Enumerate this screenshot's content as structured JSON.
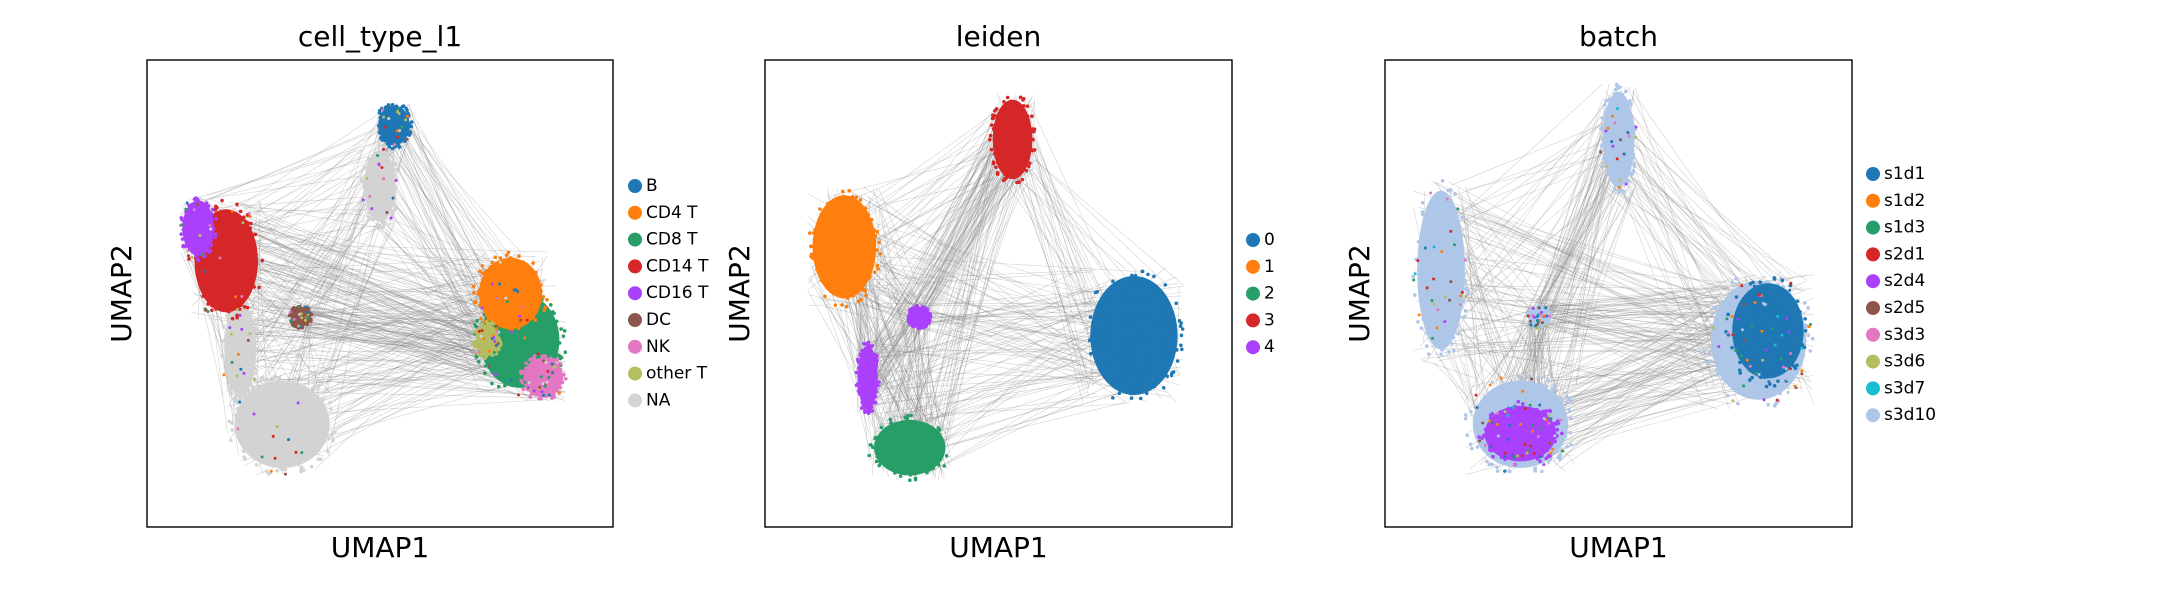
{
  "chart_data": [
    {
      "type": "scatter",
      "title": "cell_type_l1",
      "xlabel": "UMAP1",
      "ylabel": "UMAP2",
      "series": [
        {
          "name": "B",
          "color": "#1f77b4"
        },
        {
          "name": "CD4 T",
          "color": "#ff7f0e"
        },
        {
          "name": "CD8 T",
          "color": "#279e68"
        },
        {
          "name": "CD14 T",
          "color": "#d62728"
        },
        {
          "name": "CD16 T",
          "color": "#aa40fc"
        },
        {
          "name": "DC",
          "color": "#8c564b"
        },
        {
          "name": "NK",
          "color": "#e377c2"
        },
        {
          "name": "other T",
          "color": "#b5bd61"
        },
        {
          "name": "NA",
          "color": "#d3d3d3"
        }
      ]
    },
    {
      "type": "scatter",
      "title": "leiden",
      "xlabel": "UMAP1",
      "ylabel": "UMAP2",
      "series": [
        {
          "name": "0",
          "color": "#1f77b4"
        },
        {
          "name": "1",
          "color": "#ff7f0e"
        },
        {
          "name": "2",
          "color": "#279e68"
        },
        {
          "name": "3",
          "color": "#d62728"
        },
        {
          "name": "4",
          "color": "#aa40fc"
        }
      ]
    },
    {
      "type": "scatter",
      "title": "batch",
      "xlabel": "UMAP1",
      "ylabel": "UMAP2",
      "series": [
        {
          "name": "s1d1",
          "color": "#1f77b4"
        },
        {
          "name": "s1d2",
          "color": "#ff7f0e"
        },
        {
          "name": "s1d3",
          "color": "#279e68"
        },
        {
          "name": "s2d1",
          "color": "#d62728"
        },
        {
          "name": "s2d4",
          "color": "#aa40fc"
        },
        {
          "name": "s2d5",
          "color": "#8c564b"
        },
        {
          "name": "s3d3",
          "color": "#e377c2"
        },
        {
          "name": "s3d6",
          "color": "#b5bd61"
        },
        {
          "name": "s3d7",
          "color": "#17becf"
        },
        {
          "name": "s3d10",
          "color": "#aec7e8"
        }
      ]
    }
  ]
}
